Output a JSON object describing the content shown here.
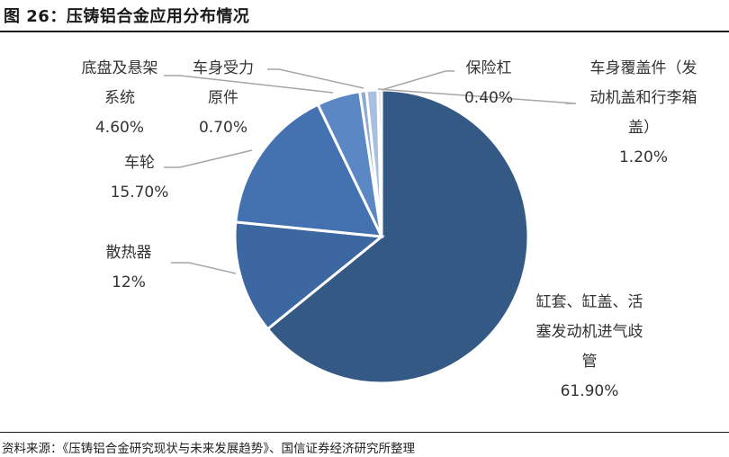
{
  "figure": {
    "title": "图 26：压铸铝合金应用分布情况",
    "source": "资料来源：《压铸铝合金研究现状与未来发展趋势》、国信证券经济研究所整理"
  },
  "chart_data": {
    "type": "pie",
    "title": "",
    "series": [
      {
        "slices": [
          {
            "label": [
              "缸套、缸盖、活",
              "塞发动机进气歧",
              "管"
            ],
            "value_label": "61.90%",
            "value": 61.9,
            "color": "#355985"
          },
          {
            "label": [
              "散热器"
            ],
            "value_label": "12%",
            "value": 12.0,
            "color": "#3c67a0"
          },
          {
            "label": [
              "车轮"
            ],
            "value_label": "15.70%",
            "value": 15.7,
            "color": "#4471b0"
          },
          {
            "label": [
              "底盘及悬架",
              "系统"
            ],
            "value_label": "4.60%",
            "value": 4.6,
            "color": "#5b88c4"
          },
          {
            "label": [
              "车身受力",
              "原件"
            ],
            "value_label": "0.70%",
            "value": 0.7,
            "color": "#8ea9d4"
          },
          {
            "label": [
              "车身覆盖件（发",
              "动机盖和行李箱",
              "盖）"
            ],
            "value_label": "1.20%",
            "value": 1.2,
            "color": "#a9bfe0"
          },
          {
            "label": [
              "保险杠"
            ],
            "value_label": "0.40%",
            "value": 0.4,
            "color": "#c8d6ec"
          }
        ]
      }
    ]
  }
}
